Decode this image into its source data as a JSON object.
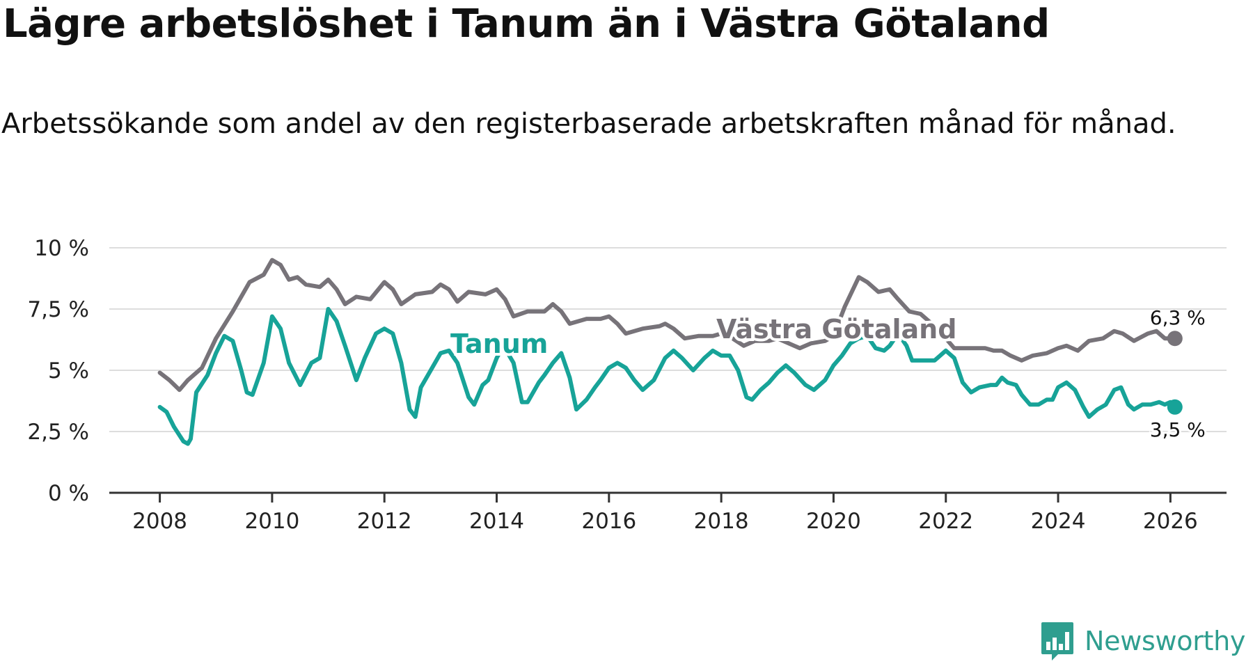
{
  "header": {
    "title": "Lägre arbetslöshet i Tanum än i Västra Götaland",
    "subtitle": "Arbetssökande som andel av den registerbaserade arbetskraften månad för månad."
  },
  "logo": {
    "text": "Newsworthy"
  },
  "colors": {
    "tanum": "#17a398",
    "vastra": "#777379",
    "grid": "#dddddd",
    "axis": "#333333",
    "brand": "#2f9e8f"
  },
  "chart_data": {
    "type": "line",
    "title": "Lägre arbetslöshet i Tanum än i Västra Götaland",
    "subtitle": "Arbetssökande som andel av den registerbaserade arbetskraften månad för månad.",
    "xlabel": "",
    "ylabel": "",
    "xlim": [
      2007.1,
      2027.0
    ],
    "ylim": [
      0,
      10
    ],
    "x_ticks": [
      2008,
      2010,
      2012,
      2014,
      2016,
      2018,
      2020,
      2022,
      2024,
      2026
    ],
    "x_tick_labels": [
      "2008",
      "2010",
      "2012",
      "2014",
      "2016",
      "2018",
      "2020",
      "2022",
      "2024",
      "2026"
    ],
    "y_ticks": [
      0,
      2.5,
      5,
      7.5,
      10
    ],
    "y_tick_labels": [
      "0 %",
      "2,5 %",
      "5 %",
      "7,5 %",
      "10 %"
    ],
    "grid": "horizontal",
    "series": [
      {
        "name": "Västra Götaland",
        "label": "Västra Götaland",
        "end_label": "6,3 %",
        "points": [
          [
            2008.0,
            4.9
          ],
          [
            2008.17,
            4.6
          ],
          [
            2008.35,
            4.2
          ],
          [
            2008.5,
            4.6
          ],
          [
            2008.75,
            5.1
          ],
          [
            2009.0,
            6.3
          ],
          [
            2009.3,
            7.4
          ],
          [
            2009.6,
            8.6
          ],
          [
            2009.85,
            8.9
          ],
          [
            2010.0,
            9.5
          ],
          [
            2010.15,
            9.3
          ],
          [
            2010.3,
            8.7
          ],
          [
            2010.45,
            8.8
          ],
          [
            2010.6,
            8.5
          ],
          [
            2010.85,
            8.4
          ],
          [
            2011.0,
            8.7
          ],
          [
            2011.15,
            8.3
          ],
          [
            2011.3,
            7.7
          ],
          [
            2011.5,
            8.0
          ],
          [
            2011.75,
            7.9
          ],
          [
            2012.0,
            8.6
          ],
          [
            2012.15,
            8.3
          ],
          [
            2012.3,
            7.7
          ],
          [
            2012.55,
            8.1
          ],
          [
            2012.85,
            8.2
          ],
          [
            2013.0,
            8.5
          ],
          [
            2013.15,
            8.3
          ],
          [
            2013.3,
            7.8
          ],
          [
            2013.5,
            8.2
          ],
          [
            2013.8,
            8.1
          ],
          [
            2014.0,
            8.3
          ],
          [
            2014.15,
            7.9
          ],
          [
            2014.3,
            7.2
          ],
          [
            2014.55,
            7.4
          ],
          [
            2014.85,
            7.4
          ],
          [
            2015.0,
            7.7
          ],
          [
            2015.15,
            7.4
          ],
          [
            2015.3,
            6.9
          ],
          [
            2015.6,
            7.1
          ],
          [
            2015.85,
            7.1
          ],
          [
            2016.0,
            7.2
          ],
          [
            2016.15,
            6.9
          ],
          [
            2016.3,
            6.5
          ],
          [
            2016.6,
            6.7
          ],
          [
            2016.9,
            6.8
          ],
          [
            2017.0,
            6.9
          ],
          [
            2017.15,
            6.7
          ],
          [
            2017.35,
            6.3
          ],
          [
            2017.6,
            6.4
          ],
          [
            2017.85,
            6.4
          ],
          [
            2018.0,
            6.5
          ],
          [
            2018.2,
            6.3
          ],
          [
            2018.4,
            6.0
          ],
          [
            2018.6,
            6.2
          ],
          [
            2018.85,
            6.2
          ],
          [
            2019.0,
            6.3
          ],
          [
            2019.2,
            6.1
          ],
          [
            2019.4,
            5.9
          ],
          [
            2019.6,
            6.1
          ],
          [
            2019.85,
            6.2
          ],
          [
            2020.0,
            6.4
          ],
          [
            2020.2,
            7.6
          ],
          [
            2020.45,
            8.8
          ],
          [
            2020.6,
            8.6
          ],
          [
            2020.8,
            8.2
          ],
          [
            2021.0,
            8.3
          ],
          [
            2021.15,
            7.9
          ],
          [
            2021.35,
            7.4
          ],
          [
            2021.55,
            7.3
          ],
          [
            2021.8,
            6.8
          ],
          [
            2022.0,
            6.3
          ],
          [
            2022.15,
            5.9
          ],
          [
            2022.4,
            5.9
          ],
          [
            2022.7,
            5.9
          ],
          [
            2022.85,
            5.8
          ],
          [
            2023.0,
            5.8
          ],
          [
            2023.15,
            5.6
          ],
          [
            2023.35,
            5.4
          ],
          [
            2023.55,
            5.6
          ],
          [
            2023.8,
            5.7
          ],
          [
            2024.0,
            5.9
          ],
          [
            2024.15,
            6.0
          ],
          [
            2024.35,
            5.8
          ],
          [
            2024.55,
            6.2
          ],
          [
            2024.8,
            6.3
          ],
          [
            2025.0,
            6.6
          ],
          [
            2025.15,
            6.5
          ],
          [
            2025.35,
            6.2
          ],
          [
            2025.6,
            6.5
          ],
          [
            2025.75,
            6.6
          ],
          [
            2025.9,
            6.3
          ],
          [
            2026.08,
            6.3
          ]
        ]
      },
      {
        "name": "Tanum",
        "label": "Tanum",
        "end_label": "3,5 %",
        "points": [
          [
            2008.0,
            3.5
          ],
          [
            2008.12,
            3.3
          ],
          [
            2008.25,
            2.7
          ],
          [
            2008.42,
            2.1
          ],
          [
            2008.5,
            2.0
          ],
          [
            2008.55,
            2.2
          ],
          [
            2008.65,
            4.1
          ],
          [
            2008.85,
            4.8
          ],
          [
            2009.0,
            5.7
          ],
          [
            2009.15,
            6.4
          ],
          [
            2009.3,
            6.2
          ],
          [
            2009.45,
            5.0
          ],
          [
            2009.55,
            4.1
          ],
          [
            2009.65,
            4.0
          ],
          [
            2009.85,
            5.3
          ],
          [
            2010.0,
            7.2
          ],
          [
            2010.15,
            6.7
          ],
          [
            2010.3,
            5.3
          ],
          [
            2010.5,
            4.4
          ],
          [
            2010.7,
            5.3
          ],
          [
            2010.85,
            5.5
          ],
          [
            2011.0,
            7.5
          ],
          [
            2011.15,
            7.0
          ],
          [
            2011.3,
            6.0
          ],
          [
            2011.5,
            4.6
          ],
          [
            2011.65,
            5.5
          ],
          [
            2011.85,
            6.5
          ],
          [
            2012.0,
            6.7
          ],
          [
            2012.15,
            6.5
          ],
          [
            2012.3,
            5.3
          ],
          [
            2012.45,
            3.4
          ],
          [
            2012.55,
            3.1
          ],
          [
            2012.65,
            4.3
          ],
          [
            2012.85,
            5.1
          ],
          [
            2013.0,
            5.7
          ],
          [
            2013.15,
            5.8
          ],
          [
            2013.3,
            5.3
          ],
          [
            2013.5,
            3.9
          ],
          [
            2013.6,
            3.6
          ],
          [
            2013.75,
            4.4
          ],
          [
            2013.85,
            4.6
          ],
          [
            2014.0,
            5.5
          ],
          [
            2014.12,
            6.0
          ],
          [
            2014.3,
            5.3
          ],
          [
            2014.45,
            3.7
          ],
          [
            2014.55,
            3.7
          ],
          [
            2014.75,
            4.5
          ],
          [
            2014.85,
            4.8
          ],
          [
            2015.0,
            5.3
          ],
          [
            2015.15,
            5.7
          ],
          [
            2015.3,
            4.7
          ],
          [
            2015.42,
            3.4
          ],
          [
            2015.6,
            3.8
          ],
          [
            2015.75,
            4.3
          ],
          [
            2015.85,
            4.6
          ],
          [
            2016.0,
            5.1
          ],
          [
            2016.15,
            5.3
          ],
          [
            2016.3,
            5.1
          ],
          [
            2016.45,
            4.6
          ],
          [
            2016.6,
            4.2
          ],
          [
            2016.8,
            4.6
          ],
          [
            2017.0,
            5.5
          ],
          [
            2017.15,
            5.8
          ],
          [
            2017.3,
            5.5
          ],
          [
            2017.5,
            5.0
          ],
          [
            2017.7,
            5.5
          ],
          [
            2017.85,
            5.8
          ],
          [
            2018.0,
            5.6
          ],
          [
            2018.15,
            5.6
          ],
          [
            2018.3,
            5.0
          ],
          [
            2018.45,
            3.9
          ],
          [
            2018.55,
            3.8
          ],
          [
            2018.7,
            4.2
          ],
          [
            2018.85,
            4.5
          ],
          [
            2019.0,
            4.9
          ],
          [
            2019.15,
            5.2
          ],
          [
            2019.3,
            4.9
          ],
          [
            2019.5,
            4.4
          ],
          [
            2019.65,
            4.2
          ],
          [
            2019.85,
            4.6
          ],
          [
            2020.0,
            5.2
          ],
          [
            2020.15,
            5.6
          ],
          [
            2020.3,
            6.1
          ],
          [
            2020.45,
            6.3
          ],
          [
            2020.6,
            6.4
          ],
          [
            2020.75,
            5.9
          ],
          [
            2020.9,
            5.8
          ],
          [
            2021.0,
            6.0
          ],
          [
            2021.15,
            6.5
          ],
          [
            2021.3,
            6.0
          ],
          [
            2021.4,
            5.4
          ],
          [
            2021.6,
            5.4
          ],
          [
            2021.8,
            5.4
          ],
          [
            2022.0,
            5.8
          ],
          [
            2022.15,
            5.5
          ],
          [
            2022.3,
            4.5
          ],
          [
            2022.45,
            4.1
          ],
          [
            2022.6,
            4.3
          ],
          [
            2022.8,
            4.4
          ],
          [
            2022.9,
            4.4
          ],
          [
            2023.0,
            4.7
          ],
          [
            2023.1,
            4.5
          ],
          [
            2023.25,
            4.4
          ],
          [
            2023.35,
            4.0
          ],
          [
            2023.5,
            3.6
          ],
          [
            2023.65,
            3.6
          ],
          [
            2023.8,
            3.8
          ],
          [
            2023.9,
            3.8
          ],
          [
            2024.0,
            4.3
          ],
          [
            2024.15,
            4.5
          ],
          [
            2024.3,
            4.2
          ],
          [
            2024.45,
            3.5
          ],
          [
            2024.55,
            3.1
          ],
          [
            2024.7,
            3.4
          ],
          [
            2024.85,
            3.6
          ],
          [
            2025.0,
            4.2
          ],
          [
            2025.12,
            4.3
          ],
          [
            2025.25,
            3.6
          ],
          [
            2025.35,
            3.4
          ],
          [
            2025.5,
            3.6
          ],
          [
            2025.65,
            3.6
          ],
          [
            2025.8,
            3.7
          ],
          [
            2025.9,
            3.6
          ],
          [
            2026.0,
            3.7
          ],
          [
            2026.08,
            3.5
          ]
        ]
      }
    ]
  }
}
